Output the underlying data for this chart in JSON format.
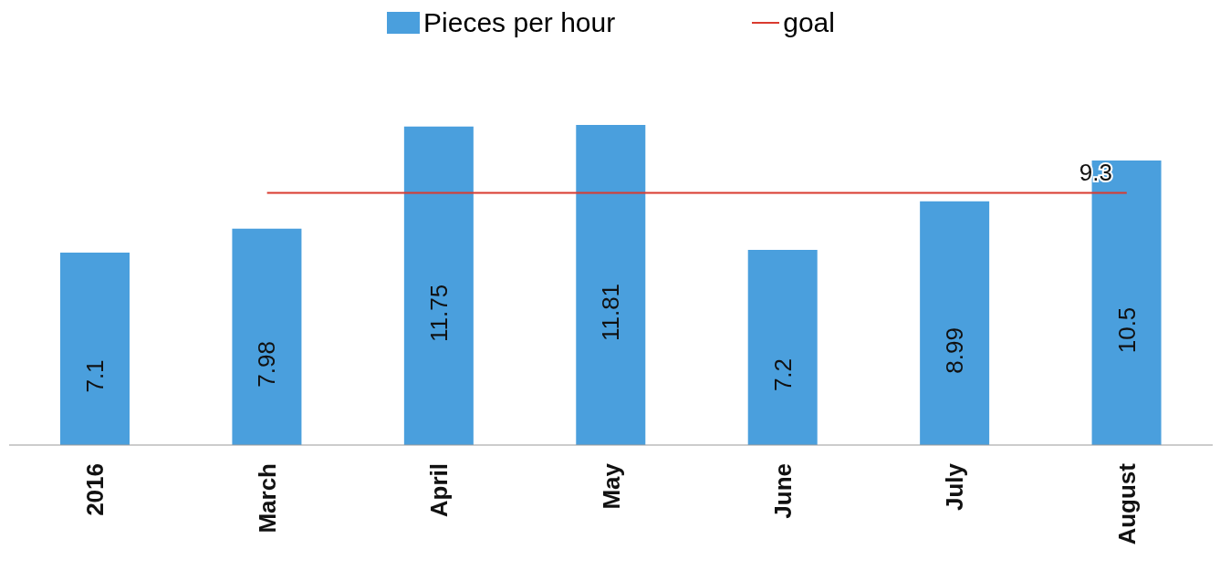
{
  "chart_data": {
    "type": "bar",
    "categories": [
      "2016",
      "March",
      "April",
      "May",
      "June",
      "July",
      "August"
    ],
    "series": [
      {
        "name": "Pieces per hour",
        "color": "#4a9fdd",
        "values": [
          7.1,
          7.98,
          11.75,
          11.81,
          7.2,
          8.99,
          10.5
        ]
      },
      {
        "name": "goal",
        "type": "line",
        "color": "#d93a2f",
        "values": [
          null,
          9.3,
          9.3,
          9.3,
          9.3,
          9.3,
          9.3
        ],
        "value_labels": [
          null,
          null,
          null,
          null,
          null,
          null,
          "9.3"
        ]
      }
    ],
    "data_labels": true,
    "legend": "top",
    "grid": false
  }
}
